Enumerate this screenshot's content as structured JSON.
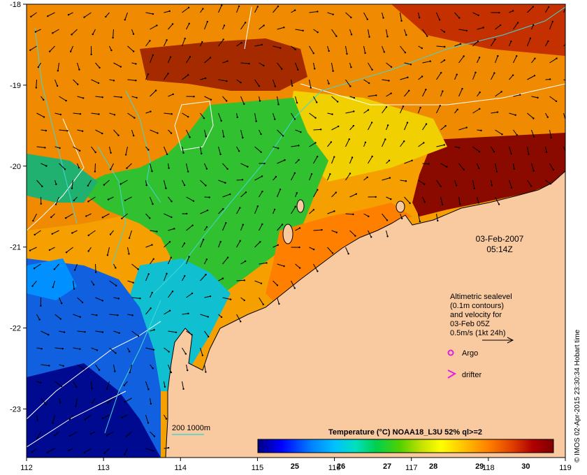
{
  "map": {
    "date": "03-Feb-2007",
    "time": "05:14Z",
    "lon_ticks": [
      "112",
      "113",
      "114",
      "115",
      "116",
      "117",
      "118",
      "119"
    ],
    "lat_ticks": [
      "-18",
      "-19",
      "-20",
      "-21",
      "-22",
      "-23"
    ],
    "lon_range": [
      112,
      119
    ],
    "lat_range": [
      -23.6,
      -18
    ],
    "credit": "© IMOS 02-Apr-2015 23:30:34 Hobart time",
    "colors": {
      "land": "#f9c9a0",
      "contour": "#ffffff",
      "isobath": "#44d6d6",
      "marker": "#e020e0"
    }
  },
  "legend": {
    "sealevel_lines": [
      "Altimetric sealevel",
      "(0.1m contours)",
      "and velocity for",
      "03-Feb 05Z",
      "0.5m/s (1kt 24h)"
    ],
    "argo_label": "Argo",
    "drifter_label": "drifter",
    "isobath_label": "200  1000m"
  },
  "colorbar": {
    "title": "Temperature (°C) NOAA18_L3U 52% ql>=2",
    "ticks": [
      "25",
      "26",
      "27",
      "28",
      "29",
      "30"
    ],
    "range": [
      24.2,
      30.6
    ],
    "stops": [
      "#000080",
      "#0000ff",
      "#0080ff",
      "#00c0ff",
      "#00e0c0",
      "#00d050",
      "#50d000",
      "#c0e000",
      "#ffff00",
      "#ffc000",
      "#ff8000",
      "#e04000",
      "#b00000",
      "#800000"
    ]
  }
}
